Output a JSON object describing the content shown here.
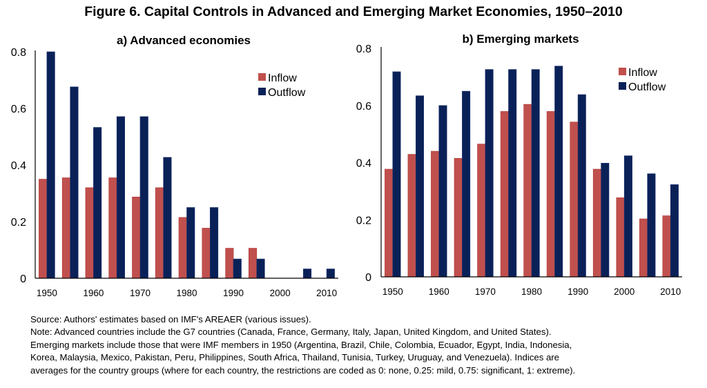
{
  "figure_title": "Figure 6. Capital Controls in Advanced and Emerging Market Economies, 1950–2010",
  "colors": {
    "inflow": "#C0504D",
    "outflow": "#0A2158"
  },
  "chart_data": [
    {
      "type": "bar",
      "title": "a) Advanced economies",
      "categories": [
        "1950",
        "1955",
        "1960",
        "1965",
        "1970",
        "1975",
        "1980",
        "1985",
        "1990",
        "1995",
        "2000",
        "2005",
        "2010"
      ],
      "x_tick_labels": [
        "1950",
        "1960",
        "1970",
        "1980",
        "1990",
        "2000",
        "2010"
      ],
      "y_tick_labels": [
        "0",
        "0.2",
        "0.4",
        "0.6",
        "0.8"
      ],
      "ylim": [
        0,
        0.8
      ],
      "legend": "top-right",
      "series": [
        {
          "name": "Inflow",
          "values": [
            0.35,
            0.355,
            0.32,
            0.355,
            0.287,
            0.32,
            0.215,
            0.177,
            0.106,
            0.106,
            0,
            0,
            0
          ]
        },
        {
          "name": "Outflow",
          "values": [
            0.8,
            0.676,
            0.533,
            0.571,
            0.571,
            0.427,
            0.25,
            0.25,
            0.068,
            0.068,
            0,
            0.033,
            0.033
          ]
        }
      ]
    },
    {
      "type": "bar",
      "title": "b) Emerging markets",
      "categories": [
        "1950",
        "1955",
        "1960",
        "1965",
        "1970",
        "1975",
        "1980",
        "1985",
        "1990",
        "1995",
        "2000",
        "2005",
        "2010"
      ],
      "x_tick_labels": [
        "1950",
        "1960",
        "1970",
        "1980",
        "1990",
        "2000",
        "2010"
      ],
      "y_tick_labels": [
        "0",
        "0.2",
        "0.4",
        "0.6",
        "0.8"
      ],
      "ylim": [
        0,
        0.8
      ],
      "legend": "top-right",
      "series": [
        {
          "name": "Inflow",
          "values": [
            0.377,
            0.429,
            0.44,
            0.415,
            0.465,
            0.579,
            0.604,
            0.579,
            0.542,
            0.377,
            0.277,
            0.203,
            0.214
          ]
        },
        {
          "name": "Outflow",
          "values": [
            0.718,
            0.634,
            0.6,
            0.65,
            0.726,
            0.726,
            0.726,
            0.738,
            0.638,
            0.398,
            0.424,
            0.361,
            0.323
          ]
        }
      ]
    }
  ],
  "notes": [
    "Source: Authors' estimates based on IMF's AREAER (various issues).",
    "Note: Advanced countries include the G7 countries (Canada, France, Germany, Italy, Japan, United Kingdom, and United States).",
    "Emerging markets include those that were IMF members in 1950 (Argentina, Brazil, Chile, Colombia, Ecuador, Egypt, India, Indonesia,",
    "Korea, Malaysia, Mexico, Pakistan, Peru, Philippines, South Africa, Thailand, Tunisia, Turkey, Uruguay, and Venezuela). Indices are",
    "averages for the country groups (where for each country, the restrictions are coded as 0: none, 0.25: mild, 0.75: significant, 1: extreme)."
  ]
}
